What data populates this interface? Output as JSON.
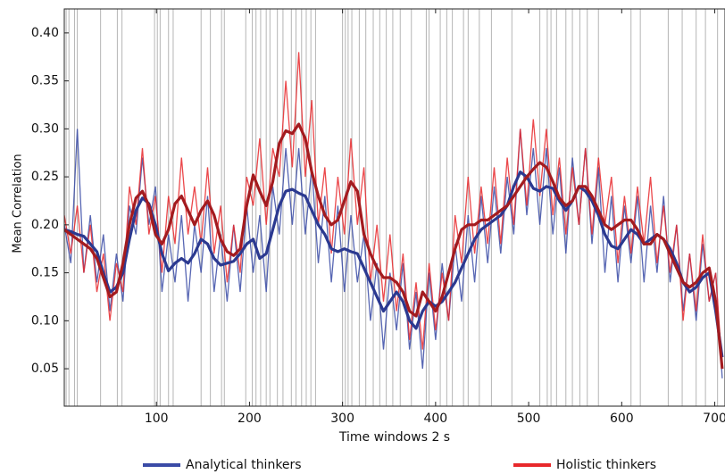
{
  "chart_data": {
    "type": "line",
    "x_label": "Time windows 2 s",
    "y_label": "Mean Correlation",
    "x": [
      1,
      8,
      15,
      22,
      29,
      36,
      43,
      50,
      57,
      64,
      71,
      78,
      85,
      92,
      99,
      106,
      113,
      120,
      127,
      134,
      141,
      148,
      155,
      162,
      169,
      176,
      183,
      190,
      197,
      204,
      211,
      218,
      225,
      232,
      239,
      246,
      253,
      260,
      267,
      274,
      281,
      288,
      295,
      302,
      309,
      316,
      323,
      330,
      337,
      344,
      351,
      358,
      365,
      372,
      379,
      386,
      393,
      400,
      407,
      414,
      421,
      428,
      435,
      442,
      449,
      456,
      463,
      470,
      477,
      484,
      491,
      498,
      505,
      512,
      519,
      526,
      533,
      540,
      547,
      554,
      561,
      568,
      575,
      582,
      589,
      596,
      603,
      610,
      617,
      624,
      631,
      638,
      645,
      652,
      659,
      666,
      673,
      680,
      687,
      694,
      701,
      708
    ],
    "series": [
      {
        "name": "Analytical thinkers",
        "color": "#3a4ba6",
        "smooth_color": "#2b3990",
        "values": [
          0.2,
          0.16,
          0.3,
          0.15,
          0.21,
          0.14,
          0.19,
          0.11,
          0.17,
          0.12,
          0.22,
          0.19,
          0.27,
          0.2,
          0.24,
          0.13,
          0.19,
          0.14,
          0.21,
          0.12,
          0.2,
          0.15,
          0.23,
          0.13,
          0.19,
          0.12,
          0.2,
          0.13,
          0.22,
          0.15,
          0.21,
          0.13,
          0.24,
          0.19,
          0.28,
          0.2,
          0.28,
          0.19,
          0.26,
          0.16,
          0.23,
          0.14,
          0.22,
          0.13,
          0.21,
          0.14,
          0.19,
          0.1,
          0.16,
          0.07,
          0.15,
          0.09,
          0.16,
          0.07,
          0.13,
          0.05,
          0.15,
          0.08,
          0.16,
          0.1,
          0.18,
          0.12,
          0.21,
          0.14,
          0.23,
          0.16,
          0.24,
          0.17,
          0.25,
          0.19,
          0.3,
          0.21,
          0.28,
          0.2,
          0.28,
          0.19,
          0.26,
          0.17,
          0.27,
          0.2,
          0.28,
          0.18,
          0.26,
          0.15,
          0.23,
          0.14,
          0.22,
          0.16,
          0.23,
          0.14,
          0.22,
          0.15,
          0.23,
          0.14,
          0.2,
          0.11,
          0.17,
          0.1,
          0.18,
          0.12,
          0.15,
          0.04
        ],
        "smooth": [
          0.195,
          0.193,
          0.19,
          0.188,
          0.18,
          0.172,
          0.15,
          0.13,
          0.135,
          0.15,
          0.185,
          0.215,
          0.228,
          0.222,
          0.2,
          0.17,
          0.152,
          0.16,
          0.165,
          0.16,
          0.17,
          0.185,
          0.18,
          0.165,
          0.158,
          0.16,
          0.162,
          0.17,
          0.18,
          0.185,
          0.165,
          0.17,
          0.195,
          0.22,
          0.235,
          0.237,
          0.233,
          0.23,
          0.215,
          0.2,
          0.19,
          0.175,
          0.172,
          0.175,
          0.172,
          0.17,
          0.155,
          0.14,
          0.125,
          0.11,
          0.12,
          0.13,
          0.12,
          0.1,
          0.092,
          0.11,
          0.12,
          0.115,
          0.12,
          0.13,
          0.14,
          0.155,
          0.17,
          0.185,
          0.195,
          0.2,
          0.205,
          0.21,
          0.22,
          0.24,
          0.255,
          0.25,
          0.238,
          0.235,
          0.24,
          0.238,
          0.225,
          0.215,
          0.225,
          0.24,
          0.235,
          0.225,
          0.21,
          0.19,
          0.178,
          0.175,
          0.185,
          0.195,
          0.19,
          0.18,
          0.185,
          0.19,
          0.185,
          0.175,
          0.16,
          0.14,
          0.13,
          0.135,
          0.145,
          0.15,
          0.11,
          0.062
        ]
      },
      {
        "name": "Holistic thinkers",
        "color": "#e8282b",
        "smooth_color": "#a31b1f",
        "values": [
          0.21,
          0.17,
          0.22,
          0.15,
          0.2,
          0.13,
          0.17,
          0.1,
          0.16,
          0.13,
          0.24,
          0.2,
          0.28,
          0.19,
          0.23,
          0.15,
          0.23,
          0.18,
          0.27,
          0.19,
          0.24,
          0.18,
          0.26,
          0.17,
          0.22,
          0.14,
          0.2,
          0.15,
          0.25,
          0.22,
          0.29,
          0.2,
          0.28,
          0.25,
          0.35,
          0.26,
          0.38,
          0.25,
          0.33,
          0.2,
          0.26,
          0.17,
          0.25,
          0.19,
          0.29,
          0.2,
          0.26,
          0.14,
          0.2,
          0.12,
          0.19,
          0.11,
          0.17,
          0.08,
          0.14,
          0.07,
          0.16,
          0.09,
          0.15,
          0.1,
          0.21,
          0.16,
          0.25,
          0.17,
          0.24,
          0.18,
          0.26,
          0.18,
          0.27,
          0.2,
          0.3,
          0.22,
          0.31,
          0.23,
          0.3,
          0.21,
          0.27,
          0.19,
          0.26,
          0.2,
          0.28,
          0.19,
          0.27,
          0.2,
          0.25,
          0.16,
          0.23,
          0.17,
          0.24,
          0.18,
          0.25,
          0.16,
          0.22,
          0.15,
          0.2,
          0.1,
          0.17,
          0.11,
          0.19,
          0.12,
          0.15,
          0.05
        ],
        "smooth": [
          0.195,
          0.19,
          0.185,
          0.18,
          0.175,
          0.165,
          0.145,
          0.125,
          0.13,
          0.16,
          0.2,
          0.228,
          0.235,
          0.22,
          0.19,
          0.18,
          0.195,
          0.222,
          0.23,
          0.215,
          0.2,
          0.215,
          0.225,
          0.21,
          0.185,
          0.172,
          0.168,
          0.175,
          0.22,
          0.252,
          0.235,
          0.22,
          0.245,
          0.285,
          0.298,
          0.295,
          0.305,
          0.29,
          0.255,
          0.23,
          0.21,
          0.2,
          0.205,
          0.225,
          0.245,
          0.235,
          0.19,
          0.17,
          0.155,
          0.145,
          0.145,
          0.14,
          0.13,
          0.11,
          0.105,
          0.13,
          0.12,
          0.11,
          0.125,
          0.15,
          0.175,
          0.195,
          0.2,
          0.2,
          0.205,
          0.205,
          0.21,
          0.215,
          0.22,
          0.23,
          0.24,
          0.25,
          0.258,
          0.265,
          0.26,
          0.245,
          0.228,
          0.22,
          0.225,
          0.24,
          0.24,
          0.23,
          0.215,
          0.2,
          0.195,
          0.2,
          0.205,
          0.205,
          0.195,
          0.18,
          0.18,
          0.19,
          0.185,
          0.17,
          0.155,
          0.14,
          0.135,
          0.14,
          0.15,
          0.155,
          0.12,
          0.05
        ]
      }
    ],
    "highlight_x": [
      3,
      6,
      12,
      15,
      40,
      58,
      63,
      98,
      101,
      104,
      113,
      118,
      148,
      158,
      170,
      173,
      196,
      203,
      207,
      212,
      218,
      222,
      230,
      236,
      245,
      250,
      256,
      261,
      266,
      271,
      300,
      303,
      306,
      310,
      318,
      325,
      333,
      340,
      347,
      354,
      362,
      374,
      390,
      393,
      405,
      412,
      418,
      430,
      435,
      447,
      460,
      482,
      512,
      520,
      524,
      530,
      540,
      547,
      555,
      563,
      575,
      610,
      620,
      650,
      665,
      680,
      690,
      703
    ],
    "highlight_color": "#b5b5b5",
    "xlim": [
      1,
      711
    ],
    "ylim": [
      0.011,
      0.425
    ],
    "xticks": [
      100,
      200,
      300,
      400,
      500,
      600,
      700
    ],
    "yticks": [
      {
        "value": 0.05,
        "label": "0.05"
      },
      {
        "value": 0.1,
        "label": "0.10"
      },
      {
        "value": 0.15,
        "label": "0.15"
      },
      {
        "value": 0.2,
        "label": "0.20"
      },
      {
        "value": 0.25,
        "label": "0.25"
      },
      {
        "value": 0.3,
        "label": "0.30"
      },
      {
        "value": 0.35,
        "label": "0.35"
      },
      {
        "value": 0.4,
        "label": "0.40"
      }
    ],
    "legend": "bottom"
  }
}
